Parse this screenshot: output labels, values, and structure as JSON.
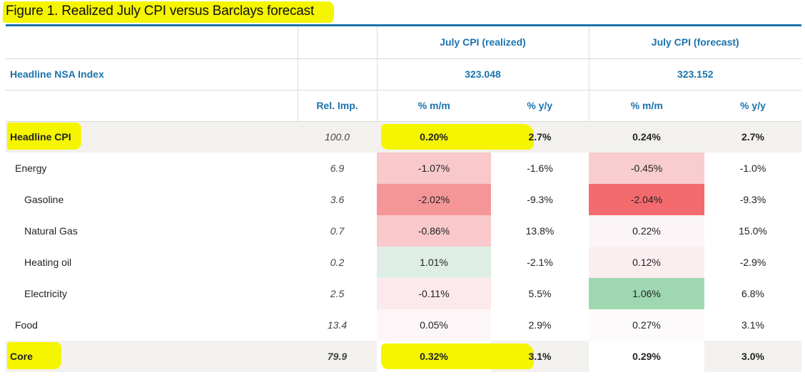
{
  "title": "Figure 1. Realized July CPI versus Barclays forecast",
  "header": {
    "col_realized": "July CPI (realized)",
    "col_forecast": "July CPI (forecast)",
    "nsa_label": "Headline NSA Index",
    "nsa_realized": "323.048",
    "nsa_forecast": "323.152",
    "rel_imp": "Rel. Imp.",
    "mm": "% m/m",
    "yy": "% y/y"
  },
  "rows": [
    {
      "label": "Headline CPI",
      "rel": "100.0",
      "r_mm": "0.20%",
      "r_yy": "2.7%",
      "f_mm": "0.24%",
      "f_yy": "2.7%"
    },
    {
      "label": "Energy",
      "rel": "6.9",
      "r_mm": "-1.07%",
      "r_yy": "-1.6%",
      "f_mm": "-0.45%",
      "f_yy": "-1.0%"
    },
    {
      "label": "Gasoline",
      "rel": "3.6",
      "r_mm": "-2.02%",
      "r_yy": "-9.3%",
      "f_mm": "-2.04%",
      "f_yy": "-9.3%"
    },
    {
      "label": "Natural Gas",
      "rel": "0.7",
      "r_mm": "-0.86%",
      "r_yy": "13.8%",
      "f_mm": "0.22%",
      "f_yy": "15.0%"
    },
    {
      "label": "Heating oil",
      "rel": "0.2",
      "r_mm": "1.01%",
      "r_yy": "-2.1%",
      "f_mm": "0.12%",
      "f_yy": "-2.9%"
    },
    {
      "label": "Electricity",
      "rel": "2.5",
      "r_mm": "-0.11%",
      "r_yy": "5.5%",
      "f_mm": "1.06%",
      "f_yy": "6.8%"
    },
    {
      "label": "Food",
      "rel": "13.4",
      "r_mm": "0.05%",
      "r_yy": "2.9%",
      "f_mm": "0.27%",
      "f_yy": "3.1%"
    },
    {
      "label": "Core",
      "rel": "79.9",
      "r_mm": "0.32%",
      "r_yy": "3.1%",
      "f_mm": "0.29%",
      "f_yy": "3.0%"
    }
  ],
  "colors": {
    "accent_blue": "#1a73ad",
    "highlight_yellow": "#f5f500",
    "heat_red_strong": "#f46b6f",
    "heat_red_mid": "#f49698",
    "heat_red_light": "#f8c8cb",
    "heat_green_strong": "#9fd8b0",
    "heat_green_light": "#deeee4"
  }
}
